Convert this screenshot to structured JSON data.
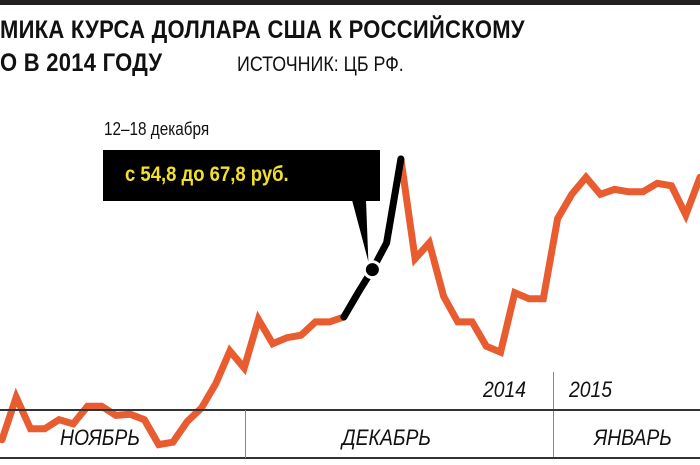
{
  "chart_data": {
    "type": "line",
    "title_line1": "МИКА КУРСА ДОЛЛАРА США К РОССИЙСКОМУ",
    "title_line2": "О В 2014 ГОДУ",
    "source": "ИСТОЧНИК: ЦБ РФ.",
    "line_color": "#e85c30",
    "highlight_color": "#000000",
    "values": [
      44.7,
      48.2,
      45.6,
      45.6,
      46.35,
      46.0,
      47.45,
      47.45,
      46.7,
      46.8,
      46.35,
      44.3,
      44.5,
      46.2,
      47.3,
      49.3,
      52.0,
      50.6,
      54.6,
      52.6,
      53.1,
      53.3,
      54.4,
      54.4,
      54.8,
      56.8,
      58.7,
      60.9,
      67.8,
      59.6,
      60.9,
      56.5,
      54.4,
      54.4,
      52.4,
      51.9,
      56.8,
      56.3,
      56.3,
      62.9,
      64.9,
      66.3,
      64.9,
      65.3,
      65.1,
      65.1,
      65.8,
      65.6,
      63.2,
      66.3
    ],
    "highlight": {
      "start_index": 24,
      "end_index": 28,
      "marker_index": 26
    },
    "annotation": {
      "date": "12–18 декабря",
      "text": "с 54,8 до 67,8 руб."
    },
    "years": [
      "2014",
      "2015"
    ],
    "months": [
      "НОЯБРЬ",
      "ДЕКАБРЬ",
      "ЯНВАРЬ"
    ],
    "grid": false
  }
}
